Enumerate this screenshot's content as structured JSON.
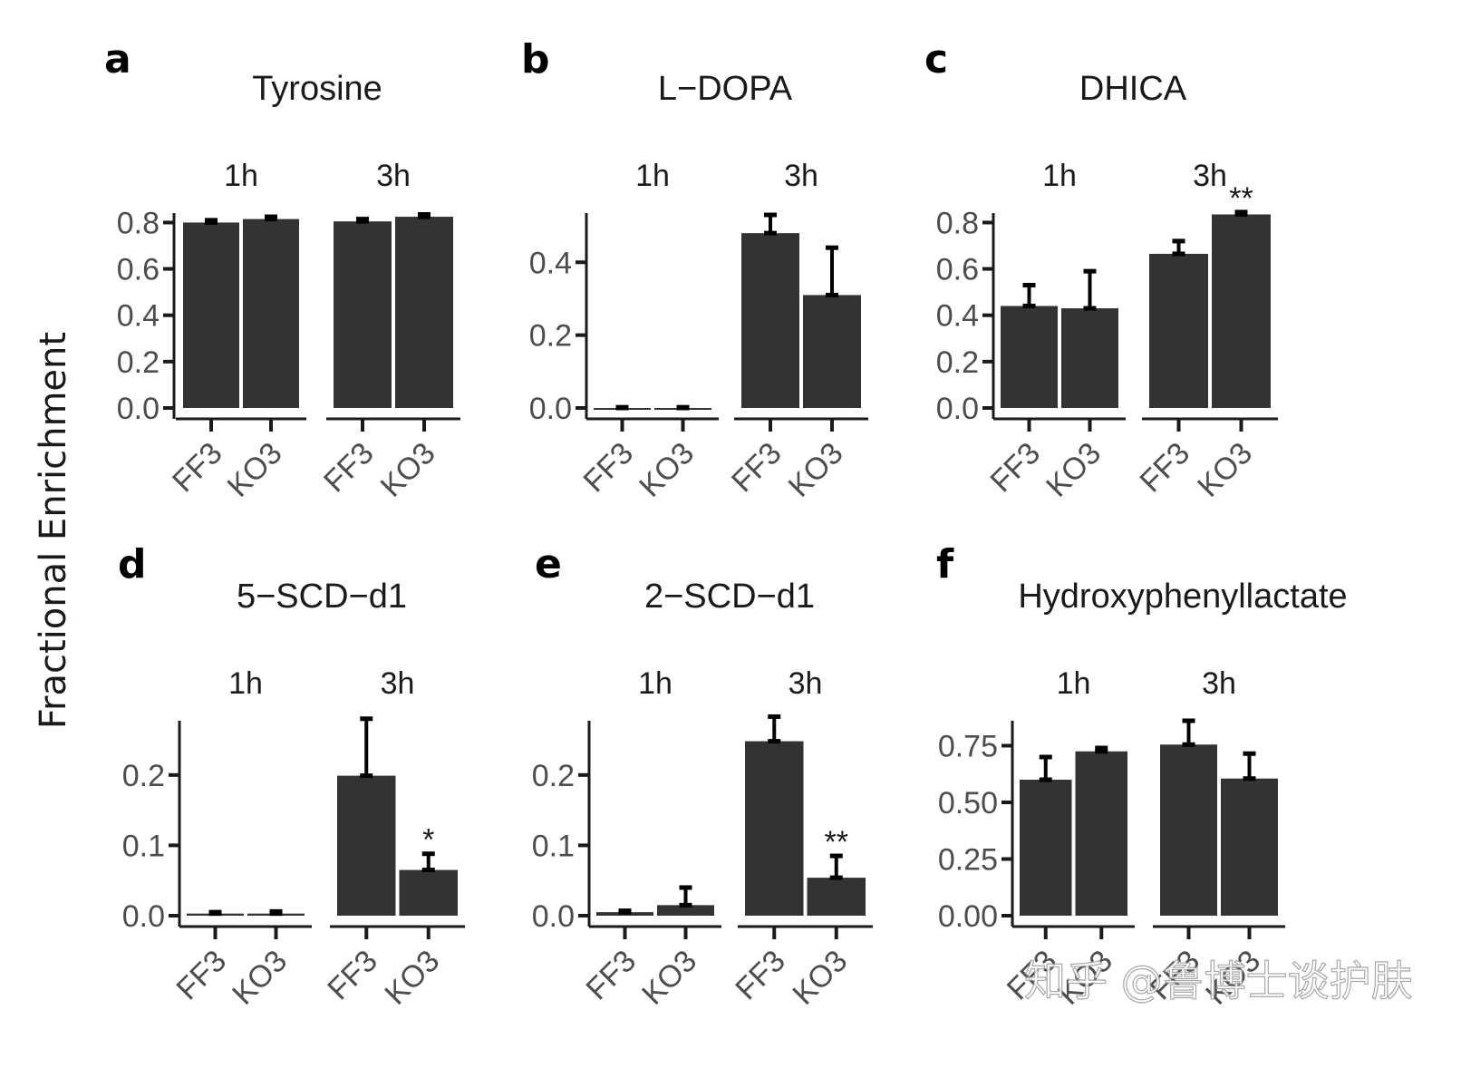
{
  "chart_data": {
    "type": "bar",
    "ylabel": "Fractional Enrichment",
    "watermark": "知乎 @鲁博士谈护肤",
    "colors": {
      "bar": "#333333",
      "error_bar": "#000000",
      "axis": "#1a1a1a",
      "tick_label": "#4d4d4d"
    },
    "panels": [
      {
        "letter": "a",
        "title": "Tyrosine",
        "facets": [
          "1h",
          "3h"
        ],
        "categories": [
          "FF3",
          "KO3"
        ],
        "ylim": [
          0,
          0.88
        ],
        "yticks": [
          0.0,
          0.2,
          0.4,
          0.6,
          0.8
        ],
        "ytick_labels": [
          "0.0",
          "0.2",
          "0.4",
          "0.6",
          "0.8"
        ],
        "values": {
          "1h": [
            0.8,
            0.815
          ],
          "3h": [
            0.805,
            0.825
          ]
        },
        "error_upper": {
          "1h": [
            0.81,
            0.825
          ],
          "3h": [
            0.815,
            0.835
          ]
        },
        "annotations": {
          "1h": [
            "",
            ""
          ],
          "3h": [
            "",
            ""
          ]
        }
      },
      {
        "letter": "b",
        "title": "L−DOPA",
        "facets": [
          "1h",
          "3h"
        ],
        "categories": [
          "FF3",
          "KO3"
        ],
        "ylim": [
          0,
          0.56
        ],
        "yticks": [
          0.0,
          0.2,
          0.4
        ],
        "ytick_labels": [
          "0.0",
          "0.2",
          "0.4"
        ],
        "values": {
          "1h": [
            0.0,
            0.0
          ],
          "3h": [
            0.48,
            0.31
          ]
        },
        "error_upper": {
          "1h": [
            0.002,
            0.002
          ],
          "3h": [
            0.53,
            0.44
          ]
        },
        "annotations": {
          "1h": [
            "",
            ""
          ],
          "3h": [
            "",
            ""
          ]
        }
      },
      {
        "letter": "c",
        "title": "DHICA",
        "facets": [
          "1h",
          "3h"
        ],
        "categories": [
          "FF3",
          "KO3"
        ],
        "ylim": [
          0,
          0.88
        ],
        "yticks": [
          0.0,
          0.2,
          0.4,
          0.6,
          0.8
        ],
        "ytick_labels": [
          "0.0",
          "0.2",
          "0.4",
          "0.6",
          "0.8"
        ],
        "values": {
          "1h": [
            0.44,
            0.43
          ],
          "3h": [
            0.665,
            0.835
          ]
        },
        "error_upper": {
          "1h": [
            0.53,
            0.59
          ],
          "3h": [
            0.72,
            0.845
          ]
        },
        "annotations": {
          "1h": [
            "",
            ""
          ],
          "3h": [
            "",
            "**"
          ]
        }
      },
      {
        "letter": "d",
        "title": "5−SCD−d1",
        "facets": [
          "1h",
          "3h"
        ],
        "categories": [
          "FF3",
          "KO3"
        ],
        "ylim": [
          0,
          0.29
        ],
        "yticks": [
          0.0,
          0.1,
          0.2
        ],
        "ytick_labels": [
          "0.0",
          "0.1",
          "0.2"
        ],
        "values": {
          "1h": [
            0.003,
            0.003
          ],
          "3h": [
            0.199,
            0.065
          ]
        },
        "error_upper": {
          "1h": [
            0.005,
            0.006
          ],
          "3h": [
            0.28,
            0.088
          ]
        },
        "annotations": {
          "1h": [
            "",
            ""
          ],
          "3h": [
            "",
            "*"
          ]
        }
      },
      {
        "letter": "e",
        "title": "2−SCD−d1",
        "facets": [
          "1h",
          "3h"
        ],
        "categories": [
          "FF3",
          "KO3"
        ],
        "ylim": [
          0,
          0.29
        ],
        "yticks": [
          0.0,
          0.1,
          0.2
        ],
        "ytick_labels": [
          "0.0",
          "0.1",
          "0.2"
        ],
        "values": {
          "1h": [
            0.005,
            0.015
          ],
          "3h": [
            0.248,
            0.054
          ]
        },
        "error_upper": {
          "1h": [
            0.007,
            0.04
          ],
          "3h": [
            0.283,
            0.085
          ]
        },
        "annotations": {
          "1h": [
            "",
            ""
          ],
          "3h": [
            "",
            "**"
          ]
        }
      },
      {
        "letter": "f",
        "title": "Hydroxyphenyllactate",
        "facets": [
          "1h",
          "3h"
        ],
        "categories": [
          "FF3",
          "KO3"
        ],
        "ylim": [
          0,
          0.9
        ],
        "yticks": [
          0.0,
          0.25,
          0.5,
          0.75
        ],
        "ytick_labels": [
          "0.00",
          "0.25",
          "0.50",
          "0.75"
        ],
        "values": {
          "1h": [
            0.6,
            0.725
          ],
          "3h": [
            0.755,
            0.605
          ]
        },
        "error_upper": {
          "1h": [
            0.7,
            0.74
          ],
          "3h": [
            0.86,
            0.715
          ]
        },
        "annotations": {
          "1h": [
            "",
            ""
          ],
          "3h": [
            "",
            ""
          ]
        }
      }
    ]
  }
}
